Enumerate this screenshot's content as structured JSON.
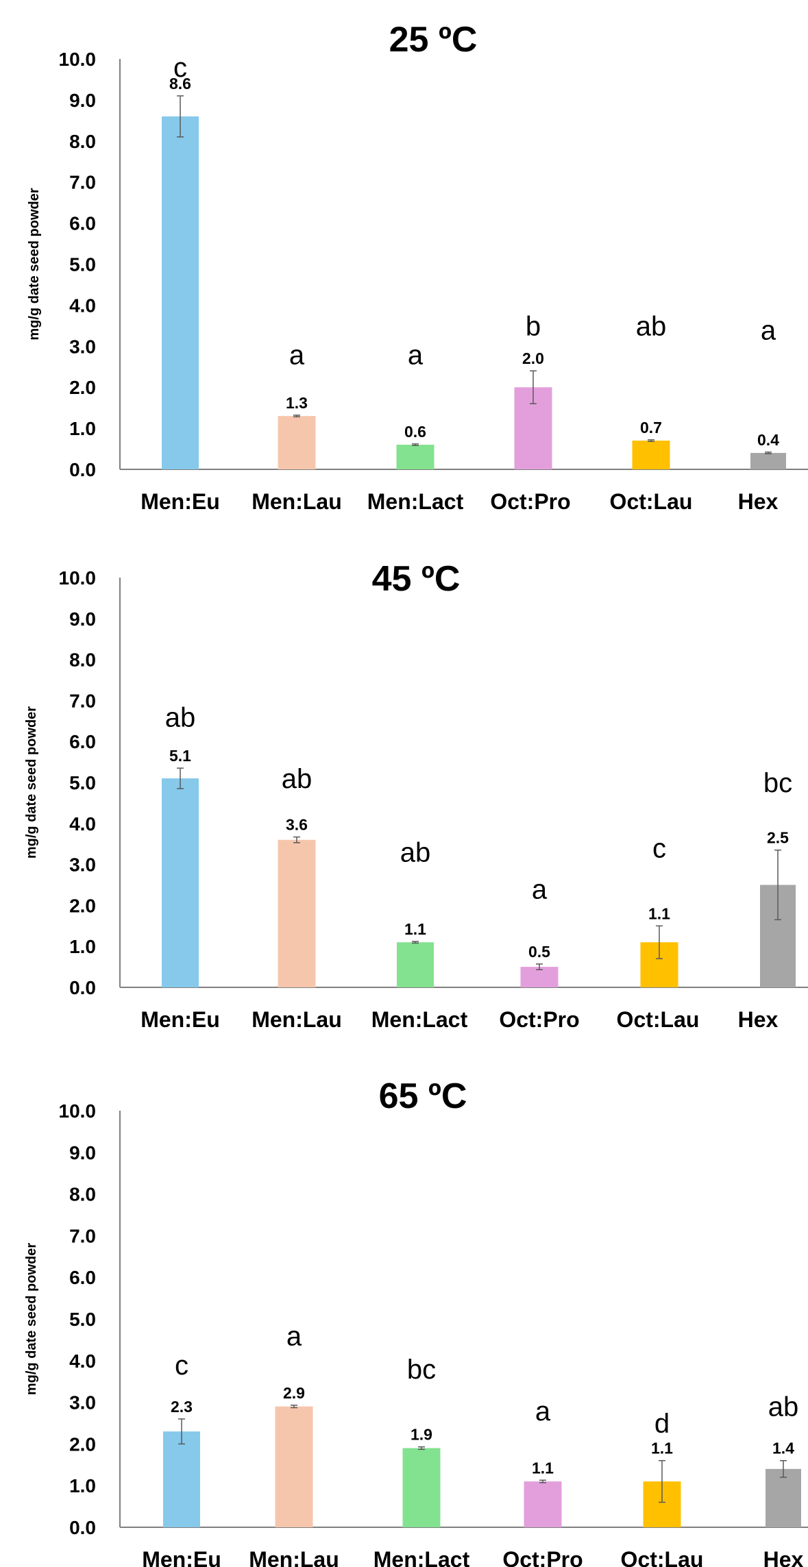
{
  "chart_data": [
    {
      "type": "bar",
      "title": "25 ºC",
      "ylabel": "mg/g date seed powder",
      "ylim": [
        0,
        10
      ],
      "yticks": [
        "0.0",
        "1.0",
        "2.0",
        "3.0",
        "4.0",
        "5.0",
        "6.0",
        "7.0",
        "8.0",
        "9.0",
        "10.0"
      ],
      "categories": [
        "Men:Eu",
        "Men:Lau",
        "Men:Lact",
        "Oct:Pro",
        "Oct:Lau",
        "Hex"
      ],
      "values": [
        8.6,
        1.3,
        0.6,
        2.0,
        0.7,
        0.4
      ],
      "value_labels": [
        "8.6",
        "1.3",
        "0.6",
        "2.0",
        "0.7",
        "0.4"
      ],
      "errors": [
        0.5,
        0.02,
        0.02,
        0.4,
        0.02,
        0.02
      ],
      "letters": [
        "c",
        "a",
        "a",
        "b",
        "ab",
        "a"
      ],
      "letter_levels": [
        9.8,
        2.8,
        2.8,
        3.5,
        3.5,
        3.4
      ],
      "colors": [
        "#86c9eb",
        "#f6c6ac",
        "#83e28f",
        "#e39fdc",
        "#ffc000",
        "#a6a6a6"
      ],
      "grid": false
    },
    {
      "type": "bar",
      "title": "45 ºC",
      "ylabel": "mg/g  date seed powder",
      "ylim": [
        0,
        10
      ],
      "yticks": [
        "0.0",
        "1.0",
        "2.0",
        "3.0",
        "4.0",
        "5.0",
        "6.0",
        "7.0",
        "8.0",
        "9.0",
        "10.0"
      ],
      "categories": [
        "Men:Eu",
        "Men:Lau",
        "Men:Lact",
        "Oct:Pro",
        "Oct:Lau",
        "Hex"
      ],
      "values": [
        5.1,
        3.6,
        1.1,
        0.5,
        1.1,
        2.5
      ],
      "value_labels": [
        "5.1",
        "3.6",
        "1.1",
        "0.5",
        "1.1",
        "2.5"
      ],
      "errors": [
        0.25,
        0.07,
        0.02,
        0.07,
        0.4,
        0.85
      ],
      "letters": [
        "ab",
        "ab",
        "ab",
        "a",
        "c",
        "bc"
      ],
      "letter_levels": [
        6.6,
        5.1,
        3.3,
        2.4,
        3.4,
        5.0
      ],
      "colors": [
        "#86c9eb",
        "#f6c6ac",
        "#83e28f",
        "#e39fdc",
        "#ffc000",
        "#a6a6a6"
      ],
      "grid": false
    },
    {
      "type": "bar",
      "title": "65 ºC",
      "ylabel": "mg/g date seed powder",
      "ylim": [
        0,
        10
      ],
      "yticks": [
        "0.0",
        "1.0",
        "2.0",
        "3.0",
        "4.0",
        "5.0",
        "6.0",
        "7.0",
        "8.0",
        "9.0",
        "10.0"
      ],
      "categories": [
        "Men:Eu",
        "Men:Lau",
        "Men:Lact",
        "Oct:Pro",
        "Oct:Lau",
        "Hex"
      ],
      "values": [
        2.3,
        2.9,
        1.9,
        1.1,
        1.1,
        1.4
      ],
      "value_labels": [
        "2.3",
        "2.9",
        "1.9",
        "1.1",
        "1.1",
        "1.4"
      ],
      "errors": [
        0.3,
        0.03,
        0.03,
        0.03,
        0.5,
        0.2
      ],
      "letters": [
        "c",
        "a",
        "bc",
        "a",
        "d",
        "ab"
      ],
      "letter_levels": [
        3.9,
        4.6,
        3.8,
        2.8,
        2.5,
        2.9
      ],
      "colors": [
        "#86c9eb",
        "#f6c6ac",
        "#83e28f",
        "#e39fdc",
        "#ffc000",
        "#a6a6a6"
      ],
      "grid": false
    }
  ]
}
